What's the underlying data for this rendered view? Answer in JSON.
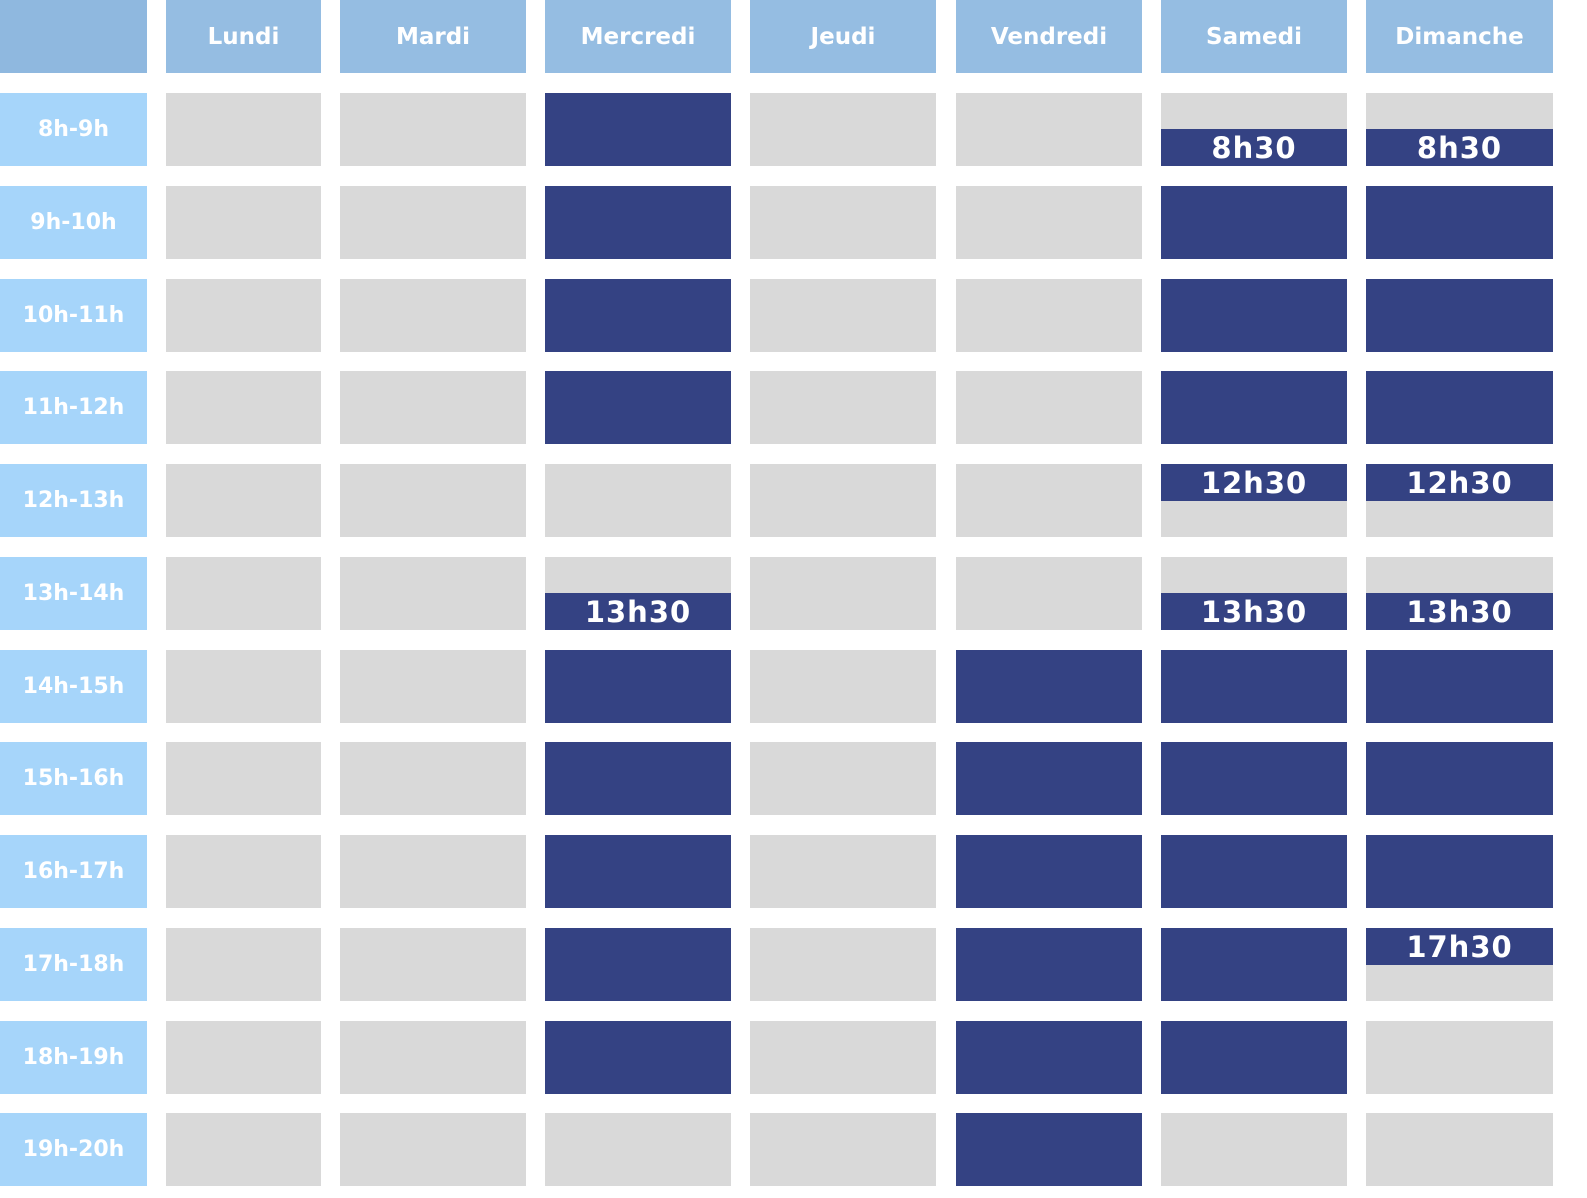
{
  "days": [
    "Lundi",
    "Mardi",
    "Mercredi",
    "Jeudi",
    "Vendredi",
    "Samedi",
    "Dimanche"
  ],
  "hours": [
    "8h-9h",
    "9h-10h",
    "10h-11h",
    "11h-12h",
    "12h-13h",
    "13h-14h",
    "14h-15h",
    "15h-16h",
    "16h-17h",
    "17h-18h",
    "18h-19h",
    "19h-20h"
  ],
  "colors": {
    "corner": "#8fb8df",
    "day_header": "#95bde2",
    "hour_header": "#a6d5fa",
    "closed": "#d9d9d9",
    "open": "#344283"
  },
  "schedule": [
    [
      "closed",
      "closed",
      "full",
      "closed",
      "closed",
      "open_from",
      "open_from"
    ],
    [
      "closed",
      "closed",
      "full",
      "closed",
      "closed",
      "full",
      "full"
    ],
    [
      "closed",
      "closed",
      "full",
      "closed",
      "closed",
      "full",
      "full"
    ],
    [
      "closed",
      "closed",
      "full",
      "closed",
      "closed",
      "full",
      "full"
    ],
    [
      "closed",
      "closed",
      "closed",
      "closed",
      "closed",
      "open_until",
      "open_until"
    ],
    [
      "closed",
      "closed",
      "open_from",
      "closed",
      "closed",
      "open_from",
      "open_from"
    ],
    [
      "closed",
      "closed",
      "full",
      "closed",
      "full",
      "full",
      "full"
    ],
    [
      "closed",
      "closed",
      "full",
      "closed",
      "full",
      "full",
      "full"
    ],
    [
      "closed",
      "closed",
      "full",
      "closed",
      "full",
      "full",
      "full"
    ],
    [
      "closed",
      "closed",
      "full",
      "closed",
      "full",
      "full",
      "open_until"
    ],
    [
      "closed",
      "closed",
      "full",
      "closed",
      "full",
      "full",
      "closed"
    ],
    [
      "closed",
      "closed",
      "closed",
      "closed",
      "full",
      "closed",
      "closed"
    ]
  ],
  "time_labels": {
    "0-5": "8h30",
    "0-6": "8h30",
    "4-5": "12h30",
    "4-6": "12h30",
    "5-2": "13h30",
    "5-5": "13h30",
    "5-6": "13h30",
    "9-6": "17h30"
  }
}
